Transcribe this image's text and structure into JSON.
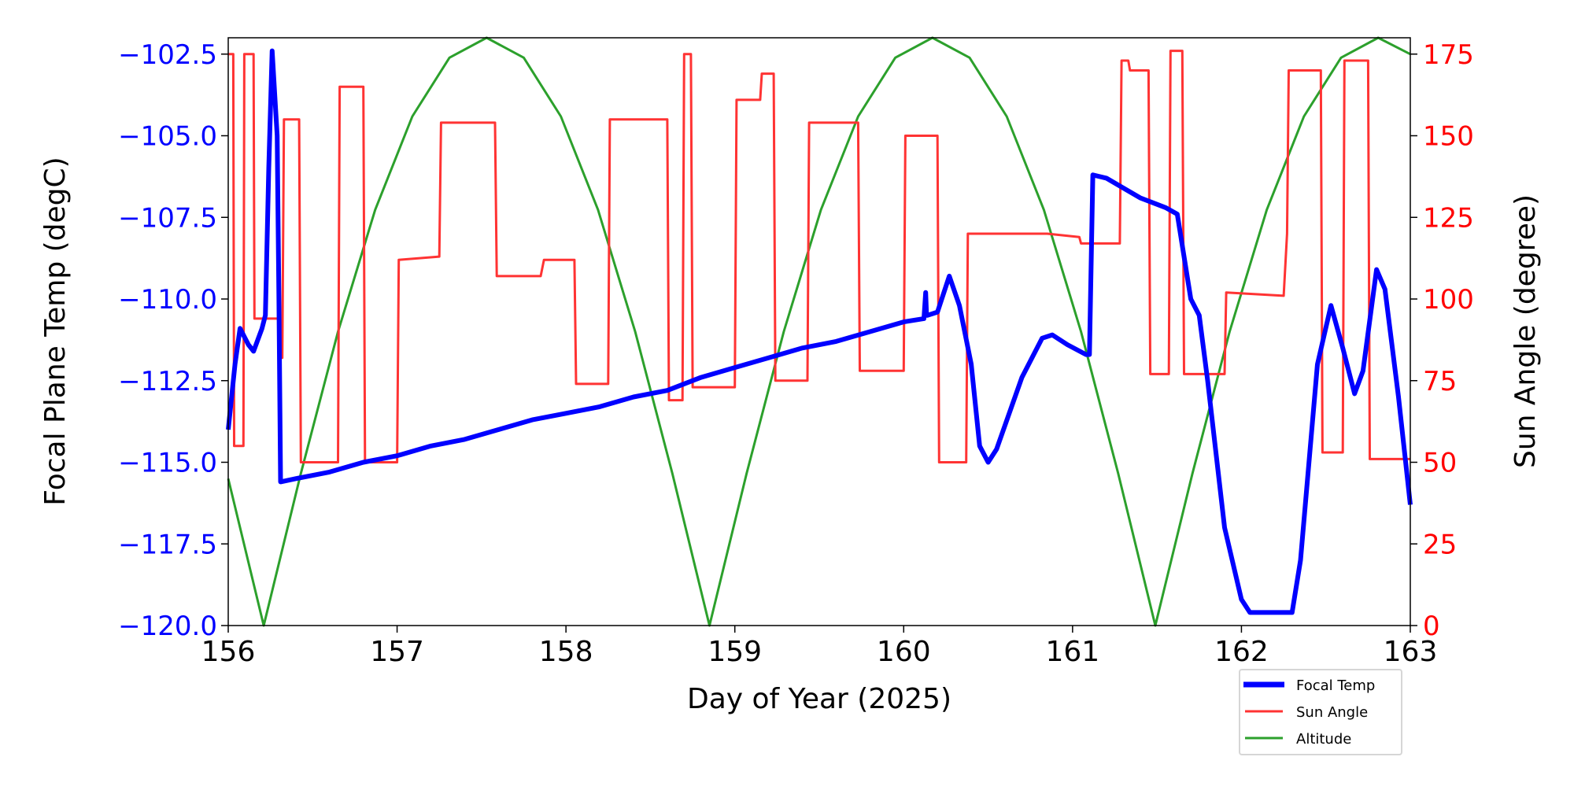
{
  "chart_data": {
    "type": "line",
    "title": "",
    "xlabel": "Day of Year (2025)",
    "ylabel_left": "Focal Plane Temp (degC)",
    "ylabel_right": "Sun Angle (degree)",
    "xlim": [
      156,
      163
    ],
    "ylim_left": [
      -120,
      -102
    ],
    "ylim_right": [
      0,
      180
    ],
    "x_ticks": [
      "156",
      "157",
      "158",
      "159",
      "160",
      "161",
      "162",
      "163"
    ],
    "x_tick_values": [
      156,
      157,
      158,
      159,
      160,
      161,
      162,
      163
    ],
    "left_ticks": [
      "−120.0",
      "−117.5",
      "−115.0",
      "−112.5",
      "−110.0",
      "−107.5",
      "−105.0",
      "−102.5"
    ],
    "left_tick_values": [
      -120,
      -117.5,
      -115,
      -112.5,
      -110,
      -107.5,
      -105,
      -102.5
    ],
    "right_ticks": [
      "0",
      "25",
      "50",
      "75",
      "100",
      "125",
      "150",
      "175"
    ],
    "right_tick_values": [
      0,
      25,
      50,
      75,
      100,
      125,
      150,
      175
    ],
    "grid": false,
    "legend_position": "below-right",
    "colors": {
      "focal": "#0000ff",
      "sun": "#ff3333",
      "altitude": "#2ca02c",
      "left_axis": "#0000ff",
      "right_axis": "#ff0000"
    },
    "series": [
      {
        "name": "Focal Temp",
        "axis": "left",
        "x": [
          156.0,
          156.04,
          156.07,
          156.12,
          156.15,
          156.2,
          156.22,
          156.24,
          156.26,
          156.29,
          156.3,
          156.31,
          156.4,
          156.6,
          156.8,
          157.0,
          157.2,
          157.4,
          157.6,
          157.8,
          158.0,
          158.2,
          158.4,
          158.6,
          158.8,
          159.0,
          159.2,
          159.4,
          159.6,
          159.8,
          160.0,
          160.12,
          160.13,
          160.135,
          160.14,
          160.2,
          160.27,
          160.33,
          160.4,
          160.45,
          160.5,
          160.55,
          160.7,
          160.82,
          160.88,
          160.97,
          161.08,
          161.1,
          161.12,
          161.2,
          161.3,
          161.4,
          161.55,
          161.62,
          161.7,
          161.75,
          161.8,
          161.9,
          162.0,
          162.05,
          162.3,
          162.35,
          162.45,
          162.53,
          162.6,
          162.67,
          162.72,
          162.8,
          162.85,
          162.93,
          163.0
        ],
        "values": [
          -114.0,
          -112.0,
          -110.9,
          -111.4,
          -111.6,
          -110.9,
          -110.5,
          -106.0,
          -102.4,
          -105.0,
          -110.0,
          -115.6,
          -115.5,
          -115.3,
          -115.0,
          -114.8,
          -114.5,
          -114.3,
          -114.0,
          -113.7,
          -113.5,
          -113.3,
          -113.0,
          -112.8,
          -112.4,
          -112.1,
          -111.8,
          -111.5,
          -111.3,
          -111.0,
          -110.7,
          -110.6,
          -109.8,
          -110.5,
          -110.5,
          -110.4,
          -109.3,
          -110.2,
          -112.0,
          -114.5,
          -115.0,
          -114.6,
          -112.4,
          -111.2,
          -111.1,
          -111.4,
          -111.7,
          -111.7,
          -106.2,
          -106.3,
          -106.6,
          -106.9,
          -107.2,
          -107.4,
          -110.0,
          -110.5,
          -112.5,
          -117.0,
          -119.2,
          -119.6,
          -119.6,
          -118.0,
          -112.0,
          -110.2,
          -111.5,
          -112.9,
          -112.2,
          -109.1,
          -109.7,
          -113.0,
          -116.3
        ]
      },
      {
        "name": "Sun Angle",
        "axis": "right",
        "x": [
          156.0,
          156.03,
          156.035,
          156.09,
          156.095,
          156.15,
          156.155,
          156.3,
          156.32,
          156.33,
          156.42,
          156.43,
          156.65,
          156.66,
          156.8,
          156.81,
          157.0,
          157.01,
          157.25,
          157.26,
          157.58,
          157.59,
          157.85,
          157.87,
          158.05,
          158.06,
          158.25,
          158.26,
          158.6,
          158.61,
          158.69,
          158.7,
          158.74,
          158.75,
          159.0,
          159.01,
          159.15,
          159.16,
          159.23,
          159.24,
          159.43,
          159.44,
          159.73,
          159.74,
          160.0,
          160.01,
          160.2,
          160.21,
          160.37,
          160.38,
          160.85,
          161.04,
          161.05,
          161.28,
          161.29,
          161.33,
          161.34,
          161.45,
          161.46,
          161.57,
          161.58,
          161.65,
          161.66,
          161.9,
          161.91,
          162.25,
          162.27,
          162.28,
          162.47,
          162.48,
          162.6,
          162.61,
          162.75,
          162.76,
          163.0
        ],
        "values": [
          175,
          175,
          55,
          55,
          175,
          175,
          94,
          94,
          82,
          155,
          155,
          50,
          50,
          165,
          165,
          50,
          50,
          112,
          113,
          154,
          154,
          107,
          107,
          112,
          112,
          74,
          74,
          155,
          155,
          69,
          69,
          175,
          175,
          73,
          73,
          161,
          161,
          169,
          169,
          75,
          75,
          154,
          154,
          78,
          78,
          150,
          150,
          50,
          50,
          120,
          120,
          119,
          117,
          117,
          173,
          173,
          170,
          170,
          77,
          77,
          176,
          176,
          77,
          77,
          102,
          101,
          120,
          170,
          170,
          53,
          53,
          173,
          173,
          51,
          51
        ]
      },
      {
        "name": "Altitude",
        "axis": "right",
        "x": [
          156.0,
          156.21,
          156.43,
          156.65,
          156.87,
          157.09,
          157.31,
          157.53,
          157.75,
          157.97,
          158.19,
          158.41,
          158.63,
          158.85,
          159.07,
          159.29,
          159.51,
          159.73,
          159.95,
          160.17,
          160.39,
          160.61,
          160.83,
          161.05,
          161.27,
          161.49,
          161.71,
          161.93,
          162.15,
          162.37,
          162.59,
          162.81,
          163.0
        ],
        "values": [
          45,
          0,
          46.6,
          90,
          127.3,
          155.9,
          173.9,
          180,
          173.9,
          155.9,
          127.3,
          90,
          46.6,
          0,
          46.6,
          90,
          127.3,
          155.9,
          173.9,
          180,
          173.9,
          155.9,
          127.3,
          90,
          46.6,
          0,
          46.6,
          90,
          127.3,
          155.9,
          173.9,
          180,
          175
        ]
      }
    ],
    "legend": [
      "Focal Temp",
      "Sun Angle",
      "Altitude"
    ]
  }
}
